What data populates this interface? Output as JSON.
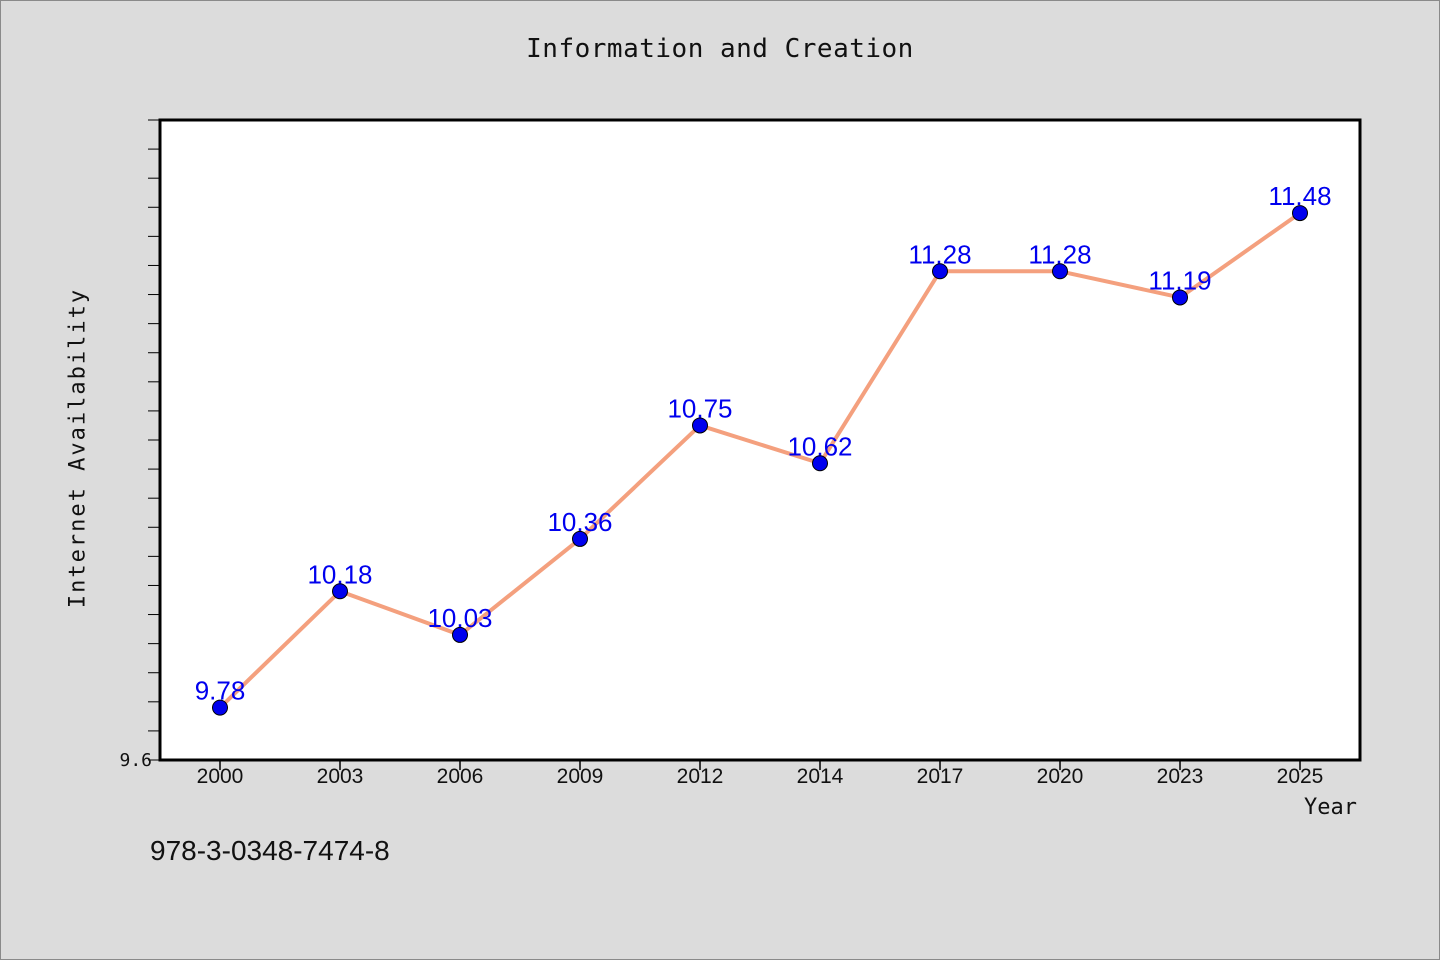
{
  "chart_data": {
    "type": "line",
    "title": "Information and Creation",
    "xlabel": "Year",
    "ylabel": "Internet Availability",
    "categories": [
      "2000",
      "2003",
      "2006",
      "2009",
      "2012",
      "2014",
      "2017",
      "2020",
      "2023",
      "2025"
    ],
    "series": [
      {
        "values": [
          9.78,
          10.18,
          10.03,
          10.36,
          10.75,
          10.62,
          11.28,
          11.28,
          11.19,
          11.48
        ]
      }
    ],
    "ylim": [
      9.6,
      11.8
    ],
    "y_ticks_labeled": [
      "9.6"
    ],
    "grid": false,
    "line_color": "#f4a07e",
    "marker_color": "#0000ee",
    "label_color": "#0000ee"
  },
  "caption": "978-3-0348-7474-8"
}
